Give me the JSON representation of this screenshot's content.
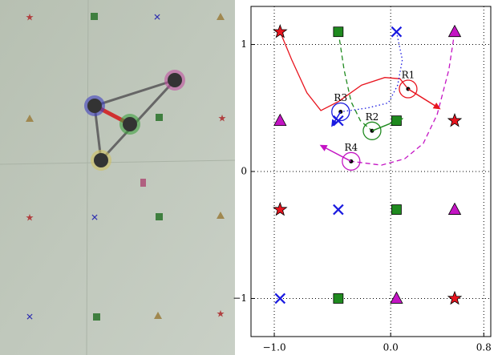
{
  "chart_data": {
    "type": "scatter",
    "xlim": [
      -1.2,
      0.86
    ],
    "ylim": [
      -1.3,
      1.3
    ],
    "xticks": [
      {
        "value": -1,
        "label": "−1.0"
      },
      {
        "value": 0,
        "label": "0.0"
      },
      0.8
    ],
    "yticks": [
      {
        "value": -1,
        "label": "−1"
      },
      0,
      1
    ],
    "grid": true,
    "marker_groups": [
      {
        "shape": "star",
        "color": "#e8141e",
        "x": [
          -0.95,
          0.55,
          -0.95,
          0.55
        ],
        "y": [
          1.1,
          0.4,
          -0.3,
          -1.0
        ]
      },
      {
        "shape": "square",
        "color": "#1f8a1f",
        "x": [
          -0.45,
          0.05,
          0.05,
          -0.45
        ],
        "y": [
          1.1,
          0.4,
          -0.3,
          -1.0
        ]
      },
      {
        "shape": "x",
        "color": "#1a1ae0",
        "x": [
          0.05,
          -0.45,
          -0.45,
          -0.95
        ],
        "y": [
          1.1,
          0.4,
          -0.3,
          -1.0
        ]
      },
      {
        "shape": "triangle",
        "color": "#c415c4",
        "x": [
          0.55,
          -0.95,
          0.55,
          0.05
        ],
        "y": [
          1.1,
          0.4,
          -0.3,
          -1.0
        ]
      }
    ],
    "robots": [
      {
        "label": "R1",
        "color": "#e8141e",
        "dash": "solid",
        "x": 0.15,
        "y": 0.65,
        "arrow_x": 0.43,
        "arrow_y": 0.49,
        "path_x": [
          -0.95,
          -0.85,
          -0.72,
          -0.6,
          -0.45,
          -0.25,
          -0.05,
          0.08,
          0.15
        ],
        "path_y": [
          1.1,
          0.88,
          0.62,
          0.48,
          0.55,
          0.68,
          0.74,
          0.73,
          0.65
        ]
      },
      {
        "label": "R2",
        "color": "#1f8a1f",
        "dash": "dashed",
        "x": -0.16,
        "y": 0.32,
        "arrow_x": 0.11,
        "arrow_y": 0.42,
        "path_x": [
          -0.45,
          -0.4,
          -0.34,
          -0.26,
          -0.16
        ],
        "path_y": [
          1.1,
          0.8,
          0.55,
          0.4,
          0.32
        ]
      },
      {
        "label": "R3",
        "color": "#1a1ae0",
        "dash": "dotted",
        "x": -0.43,
        "y": 0.47,
        "arrow_x": -0.51,
        "arrow_y": 0.35,
        "path_x": [
          0.05,
          0.1,
          0.06,
          -0.02,
          -0.2,
          -0.43
        ],
        "path_y": [
          1.1,
          0.88,
          0.68,
          0.54,
          0.5,
          0.47
        ]
      },
      {
        "label": "R4",
        "color": "#c415c4",
        "dash": "dashed",
        "x": -0.34,
        "y": 0.08,
        "arrow_x": -0.61,
        "arrow_y": 0.21,
        "path_x": [
          0.55,
          0.5,
          0.4,
          0.28,
          0.12,
          -0.08,
          -0.34
        ],
        "path_y": [
          1.1,
          0.8,
          0.45,
          0.22,
          0.1,
          0.05,
          0.08
        ]
      }
    ]
  }
}
